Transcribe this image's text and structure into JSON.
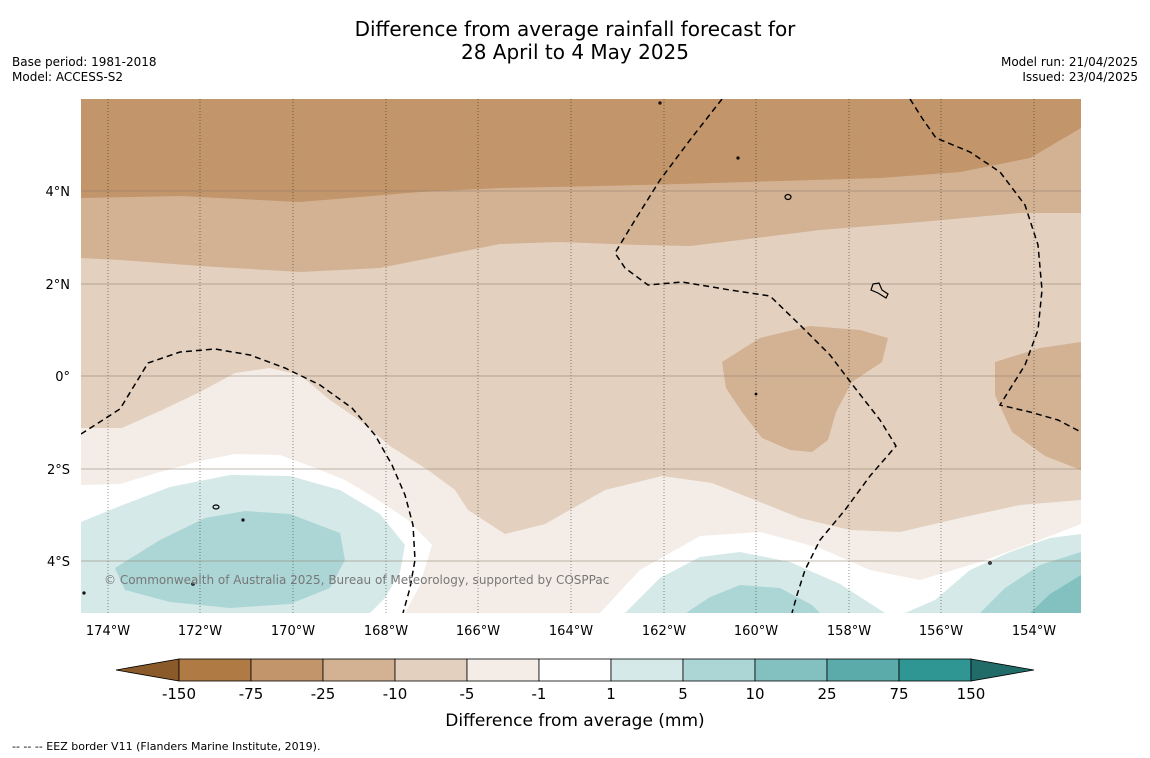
{
  "title": {
    "line1": "Difference from average rainfall forecast for",
    "line2": "28 April to 4 May 2025"
  },
  "meta_left": {
    "base_period": "Base period: 1981-2018",
    "model": "Model: ACCESS-S2"
  },
  "meta_right": {
    "model_run": "Model run: 21/04/2025",
    "issued": "Issued: 23/04/2025"
  },
  "map": {
    "copyright": "© Commonwealth of Australia 2025, Bureau of Meteorology, supported by COSPPac",
    "lon_ticks": [
      "174°W",
      "172°W",
      "170°W",
      "168°W",
      "166°W",
      "164°W",
      "162°W",
      "160°W",
      "158°W",
      "156°W",
      "154°W"
    ],
    "lat_ticks": [
      "4°N",
      "2°N",
      "0°",
      "2°S",
      "4°S"
    ],
    "colors": {
      "dry_150": "#8a5a2b",
      "dry_75": "#b07a45",
      "dry_25": "#c2956b",
      "dry_10": "#d3b193",
      "dry_5": "#e3d0bf",
      "dry_1": "#f4ede7",
      "neutral": "#ffffff",
      "wet_1": "#d5e9e8",
      "wet_5": "#acd6d6",
      "wet_10": "#83c1c0",
      "wet_25": "#5aabaa",
      "wet_75": "#2f9693",
      "wet_150": "#216b69"
    }
  },
  "colorbar": {
    "tick_labels": [
      "-150",
      "-75",
      "-25",
      "-10",
      "-5",
      "-1",
      "1",
      "5",
      "10",
      "25",
      "75",
      "150"
    ],
    "label": "Difference from average (mm)"
  },
  "footer": {
    "legend_text": "--  --  -- EEZ border V11 (Flanders Marine Institute, 2019)."
  }
}
